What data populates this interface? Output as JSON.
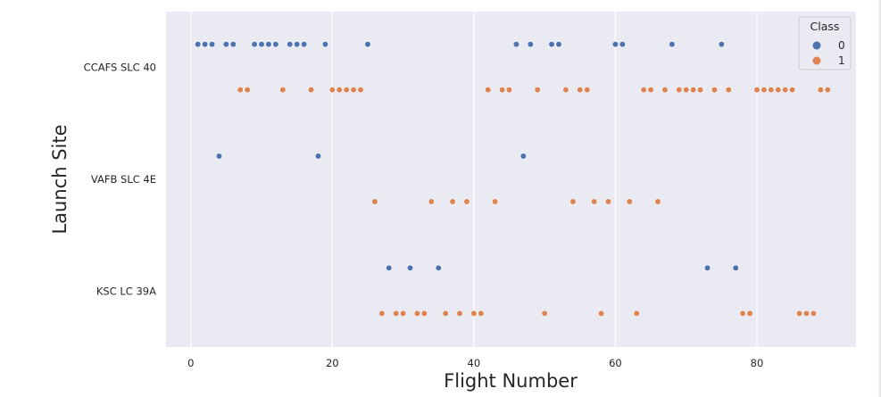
{
  "chart_data": {
    "type": "scatter",
    "title": "",
    "xlabel": "Flight Number",
    "ylabel": "Launch Site",
    "xlim": [
      -3.5,
      94
    ],
    "xticks": [
      0,
      20,
      40,
      60,
      80
    ],
    "xtick_labels": [
      "0",
      "20",
      "40",
      "60",
      "80"
    ],
    "categories": [
      "CCAFS SLC 40",
      "VAFB SLC 4E",
      "KSC LC 39A"
    ],
    "grid": true,
    "legend": {
      "title": "Class",
      "placement": "top-right",
      "entries": [
        {
          "label": "0",
          "color": "#4c72b0"
        },
        {
          "label": "1",
          "color": "#dd8452"
        }
      ]
    },
    "series": [
      {
        "class": "0",
        "color": "#4c72b0",
        "points": [
          {
            "site": "CCAFS SLC 40",
            "x": [
              1,
              2,
              3,
              5,
              6,
              9,
              10,
              11,
              12,
              14,
              15,
              16,
              19,
              25,
              46,
              48,
              51,
              52,
              60,
              61,
              68,
              75
            ]
          },
          {
            "site": "VAFB SLC 4E",
            "x": [
              4,
              18,
              47
            ]
          },
          {
            "site": "KSC LC 39A",
            "x": [
              28,
              31,
              35,
              73,
              77
            ]
          }
        ]
      },
      {
        "class": "1",
        "color": "#dd8452",
        "points": [
          {
            "site": "CCAFS SLC 40",
            "x": [
              7,
              8,
              13,
              17,
              20,
              21,
              22,
              23,
              24,
              42,
              44,
              45,
              49,
              53,
              55,
              56,
              64,
              65,
              67,
              69,
              70,
              71,
              72,
              74,
              76,
              80,
              81,
              82,
              83,
              84,
              85,
              89,
              90
            ]
          },
          {
            "site": "VAFB SLC 4E",
            "x": [
              26,
              34,
              37,
              39,
              43,
              54,
              57,
              59,
              62,
              66
            ]
          },
          {
            "site": "KSC LC 39A",
            "x": [
              27,
              29,
              30,
              32,
              33,
              36,
              38,
              40,
              41,
              50,
              58,
              63,
              78,
              79,
              86,
              87,
              88
            ]
          }
        ]
      }
    ]
  }
}
